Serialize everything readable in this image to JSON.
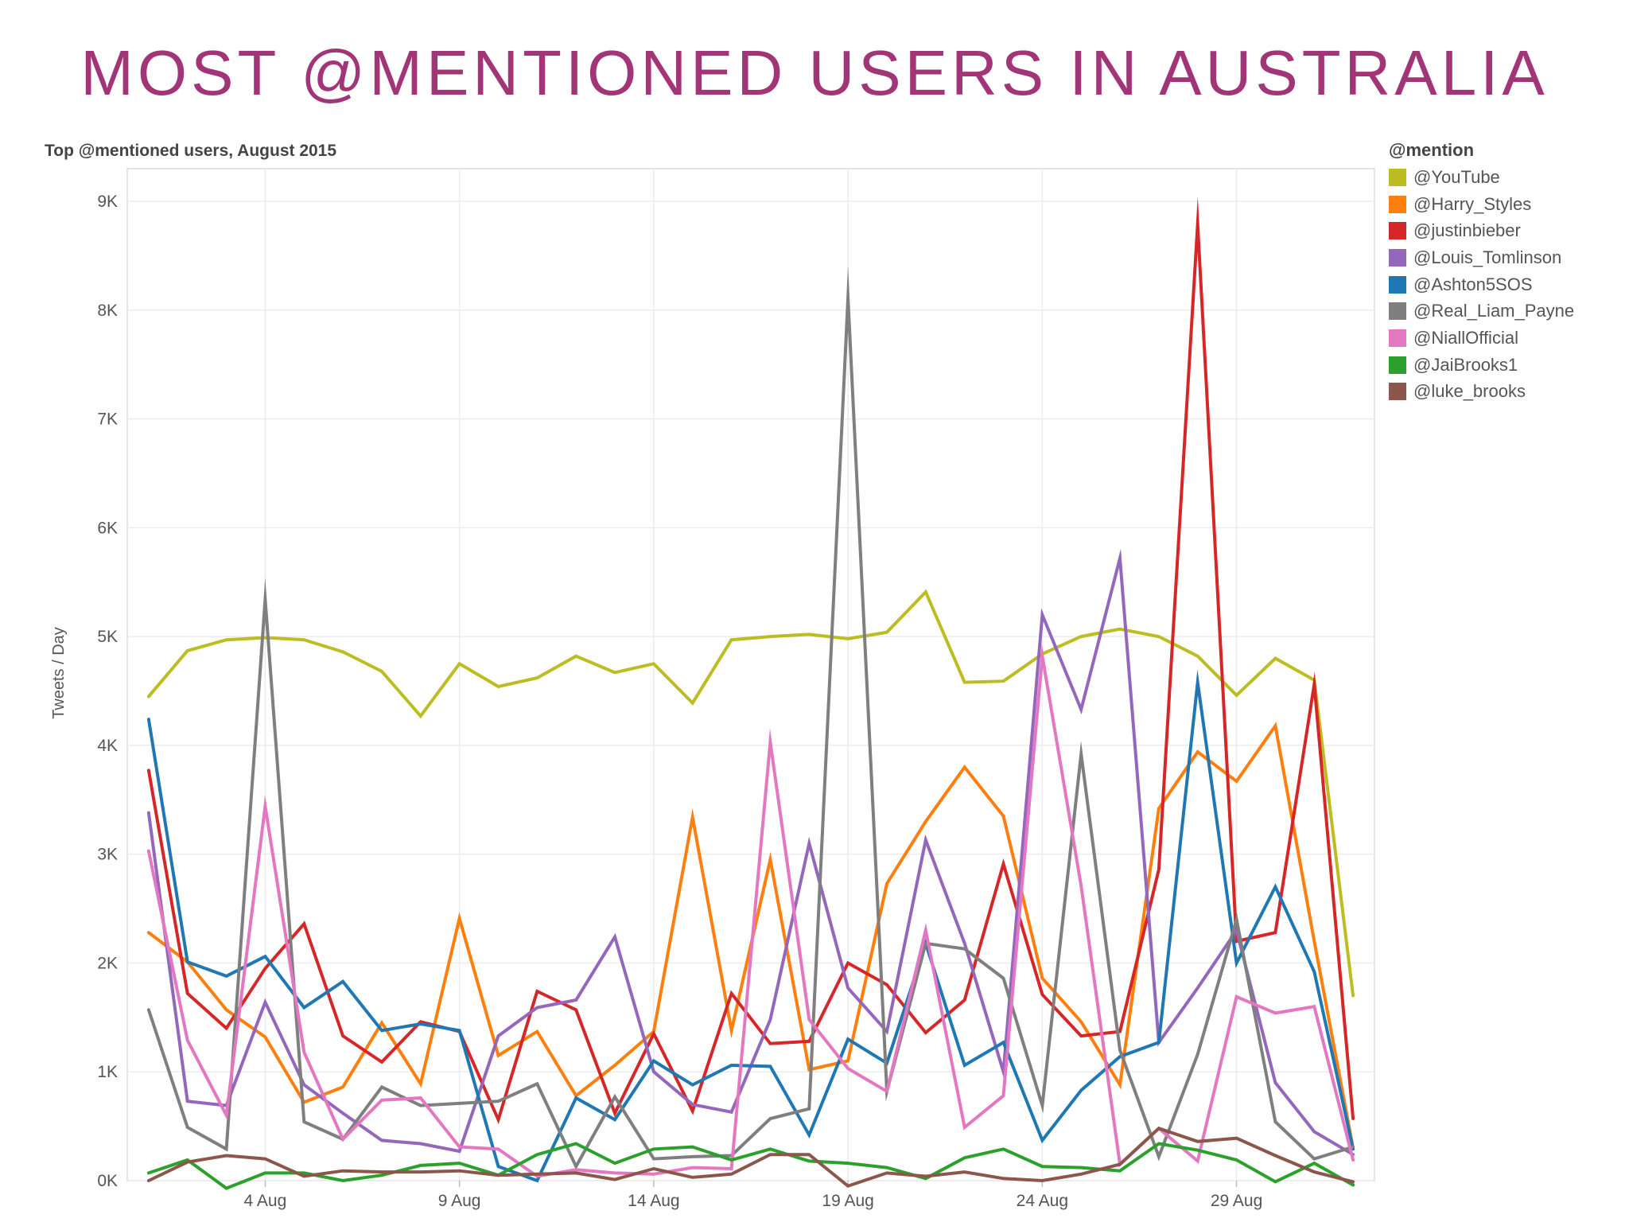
{
  "page": {
    "title": "MOST @MENTIONED USERS IN AUSTRALIA"
  },
  "chart_data": {
    "type": "line",
    "title": "Top @mentioned users, August 2015",
    "xlabel": "",
    "ylabel": "Tweets / Day",
    "ylim": [
      0,
      9300
    ],
    "yticks": [
      0,
      1000,
      2000,
      3000,
      4000,
      5000,
      6000,
      7000,
      8000,
      9000
    ],
    "ytick_labels": [
      "0K",
      "1K",
      "2K",
      "3K",
      "4K",
      "5K",
      "6K",
      "7K",
      "8K",
      "9K"
    ],
    "x_days": [
      1,
      2,
      3,
      4,
      5,
      6,
      7,
      8,
      9,
      10,
      11,
      12,
      13,
      14,
      15,
      16,
      17,
      18,
      19,
      20,
      21,
      22,
      23,
      24,
      25,
      26,
      27,
      28,
      29,
      30,
      31,
      32
    ],
    "xlim": [
      0.45,
      32.55
    ],
    "xticks": [
      4,
      9,
      14,
      19,
      24,
      29
    ],
    "xtick_labels": [
      "4 Aug",
      "9 Aug",
      "14 Aug",
      "19 Aug",
      "24 Aug",
      "29 Aug"
    ],
    "legend_title": "@mention",
    "legend_position": "right",
    "grid": true,
    "series": [
      {
        "name": "@YouTube",
        "color": "#bcbd22",
        "values": [
          4450,
          4870,
          4970,
          4990,
          4970,
          4860,
          4680,
          4270,
          4750,
          4540,
          4620,
          4820,
          4670,
          4750,
          4390,
          4970,
          5000,
          5020,
          4980,
          5040,
          5410,
          4580,
          4590,
          4840,
          5000,
          5070,
          5000,
          4820,
          4460,
          4800,
          4600,
          1700
        ]
      },
      {
        "name": "@Harry_Styles",
        "color": "#ff7f0e",
        "values": [
          2280,
          2010,
          1570,
          1320,
          720,
          860,
          1450,
          890,
          2410,
          1150,
          1370,
          780,
          1060,
          1370,
          3340,
          1380,
          2950,
          1020,
          1100,
          2730,
          3300,
          3800,
          3350,
          1860,
          1460,
          880,
          3420,
          3940,
          3670,
          4180,
          2200,
          300
        ]
      },
      {
        "name": "@justinbieber",
        "color": "#d62728",
        "values": [
          3770,
          1720,
          1400,
          1950,
          2360,
          1330,
          1090,
          1460,
          1370,
          560,
          1740,
          1570,
          620,
          1350,
          640,
          1720,
          1260,
          1280,
          2000,
          1800,
          1360,
          1660,
          2910,
          1710,
          1330,
          1370,
          2860,
          8790,
          2200,
          2280,
          4560,
          570
        ]
      },
      {
        "name": "@Louis_Tomlinson",
        "color": "#9467bd",
        "values": [
          3380,
          730,
          690,
          1640,
          880,
          620,
          370,
          340,
          270,
          1330,
          1590,
          1660,
          2240,
          1000,
          700,
          630,
          1480,
          3100,
          1770,
          1370,
          3130,
          2180,
          1000,
          5200,
          4330,
          5720,
          1270,
          1770,
          2300,
          900,
          450,
          240
        ]
      },
      {
        "name": "@Ashton5SOS",
        "color": "#1f77b4",
        "values": [
          4240,
          2010,
          1880,
          2060,
          1590,
          1830,
          1380,
          1440,
          1380,
          130,
          0,
          760,
          560,
          1100,
          880,
          1060,
          1050,
          420,
          1300,
          1080,
          2180,
          1060,
          1270,
          370,
          830,
          1140,
          1270,
          4580,
          2000,
          2700,
          1920,
          290
        ]
      },
      {
        "name": "@Real_Liam_Payne",
        "color": "#7f7f7f",
        "values": [
          1570,
          490,
          290,
          5340,
          540,
          380,
          860,
          690,
          710,
          730,
          890,
          130,
          770,
          200,
          220,
          230,
          570,
          660,
          8110,
          820,
          2180,
          2130,
          1860,
          690,
          3920,
          1200,
          220,
          1160,
          2400,
          540,
          200,
          310
        ]
      },
      {
        "name": "@NiallOfficial",
        "color": "#e377c2",
        "values": [
          3030,
          1290,
          600,
          3440,
          1180,
          380,
          740,
          760,
          310,
          290,
          40,
          100,
          70,
          60,
          120,
          110,
          4030,
          1480,
          1030,
          820,
          2300,
          490,
          780,
          4820,
          2710,
          150,
          480,
          180,
          1690,
          1540,
          1600,
          190
        ]
      },
      {
        "name": "@JaiBrooks1",
        "color": "#2ca02c",
        "values": [
          70,
          190,
          -70,
          70,
          70,
          0,
          50,
          140,
          160,
          50,
          240,
          340,
          160,
          290,
          310,
          190,
          290,
          180,
          160,
          120,
          20,
          210,
          290,
          130,
          120,
          90,
          340,
          280,
          190,
          -10,
          160,
          -40
        ]
      },
      {
        "name": "@luke_brooks",
        "color": "#8c564b",
        "values": [
          0,
          170,
          230,
          200,
          40,
          90,
          80,
          80,
          90,
          50,
          60,
          70,
          10,
          110,
          30,
          60,
          240,
          240,
          -50,
          70,
          40,
          80,
          20,
          0,
          60,
          150,
          480,
          360,
          390,
          230,
          80,
          -10
        ]
      }
    ]
  }
}
